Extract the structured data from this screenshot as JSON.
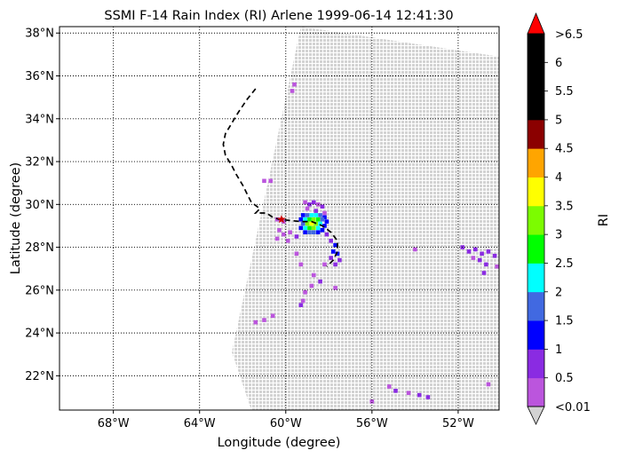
{
  "title": "SSMI F-14 Rain Index (RI) Arlene 1999-06-14 12:41:30",
  "xlabel": "Longitude (degree)",
  "ylabel": "Latitude (degree)",
  "colorbar_label": "RI",
  "map": {
    "lon_range": [
      -70.5,
      -50.1
    ],
    "lat_range": [
      20.4,
      38.3
    ],
    "lon_ticks": [
      {
        "v": -68,
        "label": "68°W"
      },
      {
        "v": -64,
        "label": "64°W"
      },
      {
        "v": -60,
        "label": "60°W"
      },
      {
        "v": -56,
        "label": "56°W"
      },
      {
        "v": -52,
        "label": "52°W"
      }
    ],
    "lat_ticks": [
      {
        "v": 22,
        "label": "22°N"
      },
      {
        "v": 24,
        "label": "24°N"
      },
      {
        "v": 26,
        "label": "26°N"
      },
      {
        "v": 28,
        "label": "28°N"
      },
      {
        "v": 30,
        "label": "30°N"
      },
      {
        "v": 32,
        "label": "32°N"
      },
      {
        "v": 34,
        "label": "34°N"
      },
      {
        "v": 36,
        "label": "36°N"
      },
      {
        "v": 38,
        "label": "38°N"
      }
    ],
    "grid": "dotted",
    "swath_color": "#d3d3d3",
    "swath_corners": {
      "bottom_left": [
        -62.5,
        23.1
      ],
      "top_left": [
        -59.3,
        38.3
      ],
      "top_right": [
        -50.1,
        36.9
      ],
      "bottom_right": [
        -50.1,
        20.4
      ],
      "bottom_left_edge": [
        -61.6,
        20.4
      ]
    },
    "track_style": "dashed black",
    "storm_track": [
      [
        -61.4,
        35.4
      ],
      [
        -61.8,
        34.9
      ],
      [
        -62.2,
        34.3
      ],
      [
        -62.5,
        33.8
      ],
      [
        -62.8,
        33.3
      ],
      [
        -62.9,
        32.8
      ],
      [
        -62.8,
        32.3
      ],
      [
        -62.5,
        31.8
      ],
      [
        -62.3,
        31.4
      ],
      [
        -62.0,
        30.9
      ],
      [
        -61.8,
        30.5
      ],
      [
        -61.6,
        30.1
      ],
      [
        -61.2,
        29.8
      ],
      [
        -61.4,
        29.6
      ],
      [
        -60.9,
        29.6
      ],
      [
        -60.6,
        29.4
      ],
      [
        -60.3,
        29.3
      ],
      [
        -59.8,
        29.25
      ],
      [
        -59.3,
        29.2
      ],
      [
        -58.8,
        29.2
      ],
      [
        -58.3,
        29.0
      ],
      [
        -57.9,
        28.7
      ],
      [
        -57.6,
        28.3
      ],
      [
        -57.6,
        27.8
      ],
      [
        -57.8,
        27.4
      ],
      [
        -58.1,
        27.1
      ]
    ],
    "storm_marker": {
      "lon": -60.2,
      "lat": 29.3,
      "color": "#cc0000"
    },
    "rain_colors": {
      "lt0.01": "#d3d3d3",
      "0.5": "#bb55dd",
      "1": "#8a2be2",
      "1.5": "#0000ff",
      "2": "#4169e1",
      "2.5": "#00ffff",
      "3": "#00ff00",
      "3.5": "#7cfc00",
      "4": "#ffff00",
      "4.5": "#ffa500"
    },
    "rain_pixels": [
      [
        -59.6,
        35.6,
        "0.5"
      ],
      [
        -59.7,
        35.3,
        "0.5"
      ],
      [
        -59.1,
        30.1,
        "0.5"
      ],
      [
        -58.9,
        30.0,
        "1"
      ],
      [
        -58.7,
        30.1,
        "1"
      ],
      [
        -58.5,
        30.0,
        "0.5"
      ],
      [
        -58.3,
        29.9,
        "1"
      ],
      [
        -59.0,
        29.8,
        "0.5"
      ],
      [
        -58.6,
        29.7,
        "1"
      ],
      [
        -58.2,
        29.6,
        "0.5"
      ],
      [
        -59.2,
        29.5,
        "1.5"
      ],
      [
        -59.0,
        29.5,
        "2"
      ],
      [
        -58.8,
        29.5,
        "2.5"
      ],
      [
        -58.6,
        29.5,
        "2.5"
      ],
      [
        -58.4,
        29.5,
        "2"
      ],
      [
        -58.2,
        29.4,
        "1.5"
      ],
      [
        -59.3,
        29.3,
        "1.5"
      ],
      [
        -59.1,
        29.3,
        "2.5"
      ],
      [
        -58.9,
        29.3,
        "3"
      ],
      [
        -58.7,
        29.3,
        "3.5"
      ],
      [
        -58.5,
        29.3,
        "3"
      ],
      [
        -58.3,
        29.3,
        "2"
      ],
      [
        -58.1,
        29.2,
        "1.5"
      ],
      [
        -59.2,
        29.1,
        "2"
      ],
      [
        -59.0,
        29.1,
        "3.5"
      ],
      [
        -58.8,
        29.1,
        "4"
      ],
      [
        -58.6,
        29.1,
        "3.5"
      ],
      [
        -58.4,
        29.1,
        "2.5"
      ],
      [
        -58.2,
        29.0,
        "1.5"
      ],
      [
        -59.3,
        28.9,
        "1.5"
      ],
      [
        -59.1,
        28.9,
        "2.5"
      ],
      [
        -58.9,
        28.9,
        "3"
      ],
      [
        -58.7,
        28.9,
        "3.5"
      ],
      [
        -58.5,
        28.9,
        "2.5"
      ],
      [
        -58.3,
        28.8,
        "1.5"
      ],
      [
        -59.1,
        28.7,
        "1.5"
      ],
      [
        -58.9,
        28.7,
        "2"
      ],
      [
        -58.7,
        28.7,
        "2"
      ],
      [
        -58.5,
        28.7,
        "1.5"
      ],
      [
        -58.1,
        28.6,
        "1"
      ],
      [
        -60.4,
        29.3,
        "0.5"
      ],
      [
        -60.1,
        29.2,
        "0.5"
      ],
      [
        -60.3,
        28.8,
        "0.5"
      ],
      [
        -60.1,
        28.6,
        "0.5"
      ],
      [
        -59.8,
        28.7,
        "0.5"
      ],
      [
        -59.5,
        28.5,
        "1"
      ],
      [
        -59.9,
        28.3,
        "0.5"
      ],
      [
        -60.4,
        28.4,
        "0.5"
      ],
      [
        -57.9,
        28.3,
        "1"
      ],
      [
        -57.7,
        28.1,
        "1.5"
      ],
      [
        -57.8,
        27.8,
        "1.5"
      ],
      [
        -57.6,
        27.7,
        "1.5"
      ],
      [
        -57.9,
        27.5,
        "1"
      ],
      [
        -57.5,
        27.4,
        "1"
      ],
      [
        -57.7,
        27.2,
        "1"
      ],
      [
        -58.2,
        27.2,
        "0.5"
      ],
      [
        -59.5,
        27.7,
        "0.5"
      ],
      [
        -59.3,
        27.2,
        "0.5"
      ],
      [
        -58.7,
        26.7,
        "0.5"
      ],
      [
        -58.4,
        26.4,
        "1"
      ],
      [
        -58.8,
        26.2,
        "0.5"
      ],
      [
        -59.1,
        25.9,
        "0.5"
      ],
      [
        -57.7,
        26.1,
        "0.5"
      ],
      [
        -59.2,
        25.5,
        "0.5"
      ],
      [
        -59.3,
        25.3,
        "1"
      ],
      [
        -60.6,
        24.8,
        "0.5"
      ],
      [
        -61.0,
        24.6,
        "0.5"
      ],
      [
        -61.4,
        24.5,
        "0.5"
      ],
      [
        -61.0,
        31.1,
        "0.5"
      ],
      [
        -60.7,
        31.1,
        "0.5"
      ],
      [
        -54.0,
        27.9,
        "0.5"
      ],
      [
        -51.8,
        28.0,
        "1"
      ],
      [
        -51.5,
        27.8,
        "1"
      ],
      [
        -51.2,
        27.9,
        "1"
      ],
      [
        -50.9,
        27.7,
        "1"
      ],
      [
        -50.6,
        27.8,
        "1"
      ],
      [
        -50.3,
        27.6,
        "1"
      ],
      [
        -51.0,
        27.4,
        "1"
      ],
      [
        -50.7,
        27.2,
        "1"
      ],
      [
        -50.2,
        27.1,
        "0.5"
      ],
      [
        -51.3,
        27.5,
        "0.5"
      ],
      [
        -50.8,
        26.8,
        "1"
      ],
      [
        -55.2,
        21.5,
        "0.5"
      ],
      [
        -54.9,
        21.3,
        "1"
      ],
      [
        -54.3,
        21.2,
        "0.5"
      ],
      [
        -53.8,
        21.1,
        "1"
      ],
      [
        -53.4,
        21.0,
        "1"
      ],
      [
        -50.6,
        21.6,
        "0.5"
      ],
      [
        -56.0,
        20.8,
        "0.5"
      ]
    ]
  },
  "colorbar": {
    "under_label": "<0.01",
    "over_label": ">6.5",
    "over_color": "#ff0000",
    "under_color": "#d3d3d3",
    "ticks": [
      "0.5",
      "1",
      "1.5",
      "2",
      "2.5",
      "3",
      "3.5",
      "4",
      "4.5",
      "5",
      "5.5",
      "6"
    ],
    "bands": [
      {
        "color": "#bb55dd"
      },
      {
        "color": "#8a2be2"
      },
      {
        "color": "#0000ff"
      },
      {
        "color": "#4169e1"
      },
      {
        "color": "#00ffff"
      },
      {
        "color": "#00ff00"
      },
      {
        "color": "#7cfc00"
      },
      {
        "color": "#ffff00"
      },
      {
        "color": "#ffa500"
      },
      {
        "color": "#8b0000"
      },
      {
        "color": "#000000"
      },
      {
        "color": "#000000"
      },
      {
        "color": "#000000"
      }
    ]
  }
}
